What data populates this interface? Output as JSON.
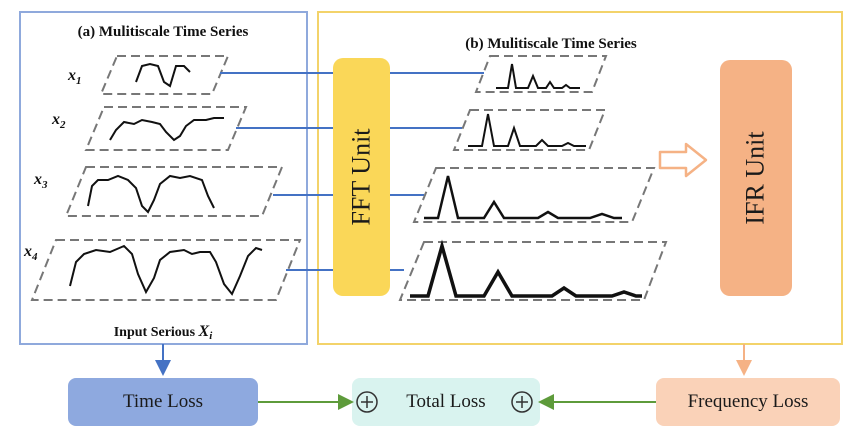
{
  "panel_a": {
    "title": "(a) Mulitiscale Time Series",
    "series_labels": [
      "x",
      "x",
      "x",
      "x"
    ],
    "series_subscripts": [
      "1",
      "2",
      "3",
      "4"
    ],
    "caption_prefix": "Input Serious",
    "caption_var": "X",
    "caption_sub": "i"
  },
  "panel_b": {
    "title": "(b) Mulitiscale Time Series"
  },
  "fft_unit": {
    "label": "FFT Unit"
  },
  "ifr_unit": {
    "label": "IFR Unit"
  },
  "losses": {
    "time": "Time Loss",
    "total": "Total Loss",
    "frequency": "Frequency Loss",
    "plus_symbol": "⊕"
  },
  "colors": {
    "panel_a_border": "#8fa9dc",
    "panel_b_border": "#f3d36a",
    "fft_fill": "#fad758",
    "ifr_fill": "#f5b285",
    "time_loss_fill": "#8ea9df",
    "total_loss_fill": "#d9f3ef",
    "freq_loss_fill": "#fad2b8",
    "connector": "#4472c4",
    "green_arrow": "#5e9b3b"
  }
}
